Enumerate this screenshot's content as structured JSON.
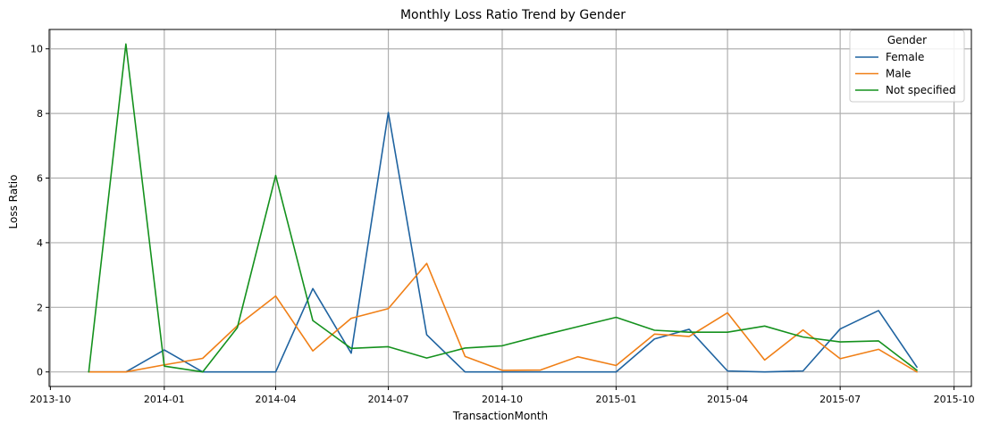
{
  "chart_data": {
    "type": "line",
    "title": "Monthly Loss Ratio Trend by Gender",
    "xlabel": "TransactionMonth",
    "ylabel": "Loss Ratio",
    "x": [
      "2013-11",
      "2013-12",
      "2014-01",
      "2014-02",
      "2014-03",
      "2014-04",
      "2014-05",
      "2014-06",
      "2014-07",
      "2014-08",
      "2014-09",
      "2014-10",
      "2014-11",
      "2014-12",
      "2015-01",
      "2015-02",
      "2015-03",
      "2015-04",
      "2015-05",
      "2015-06",
      "2015-07",
      "2015-08",
      "2015-09"
    ],
    "x_ticks": [
      "2013-10",
      "2014-01",
      "2014-04",
      "2014-07",
      "2014-10",
      "2015-01",
      "2015-04",
      "2015-07",
      "2015-10"
    ],
    "y_ticks": [
      0,
      2,
      4,
      6,
      8,
      10
    ],
    "ylim": [
      -0.45,
      10.6
    ],
    "xlim": [
      "2013-09-30",
      "2015-10-15"
    ],
    "grid": true,
    "legend": {
      "title": "Gender",
      "placement": "top-right"
    },
    "series": [
      {
        "name": "Female",
        "color": "#1f63a0",
        "values": [
          0,
          0,
          0.68,
          0,
          0,
          0,
          2.58,
          0.58,
          8.03,
          1.15,
          0,
          0,
          0,
          0,
          0,
          1.02,
          1.32,
          0.03,
          0,
          0.03,
          1.33,
          1.9,
          0.15
        ]
      },
      {
        "name": "Male",
        "color": "#f07f16",
        "values": [
          0,
          0,
          0.22,
          0.42,
          1.43,
          2.35,
          0.65,
          1.66,
          1.96,
          3.36,
          0.48,
          0.05,
          0.06,
          0.47,
          0.2,
          1.17,
          1.1,
          1.83,
          0.37,
          1.3,
          0.41,
          0.7,
          0
        ]
      },
      {
        "name": "Not specified",
        "color": "#14911d",
        "values": [
          0,
          10.15,
          0.18,
          0,
          1.37,
          6.08,
          1.59,
          0.73,
          0.78,
          0.43,
          0.74,
          0.81,
          1.12,
          1.4,
          1.69,
          1.29,
          1.23,
          1.23,
          1.42,
          1.08,
          0.93,
          0.96,
          0.05
        ]
      }
    ]
  }
}
